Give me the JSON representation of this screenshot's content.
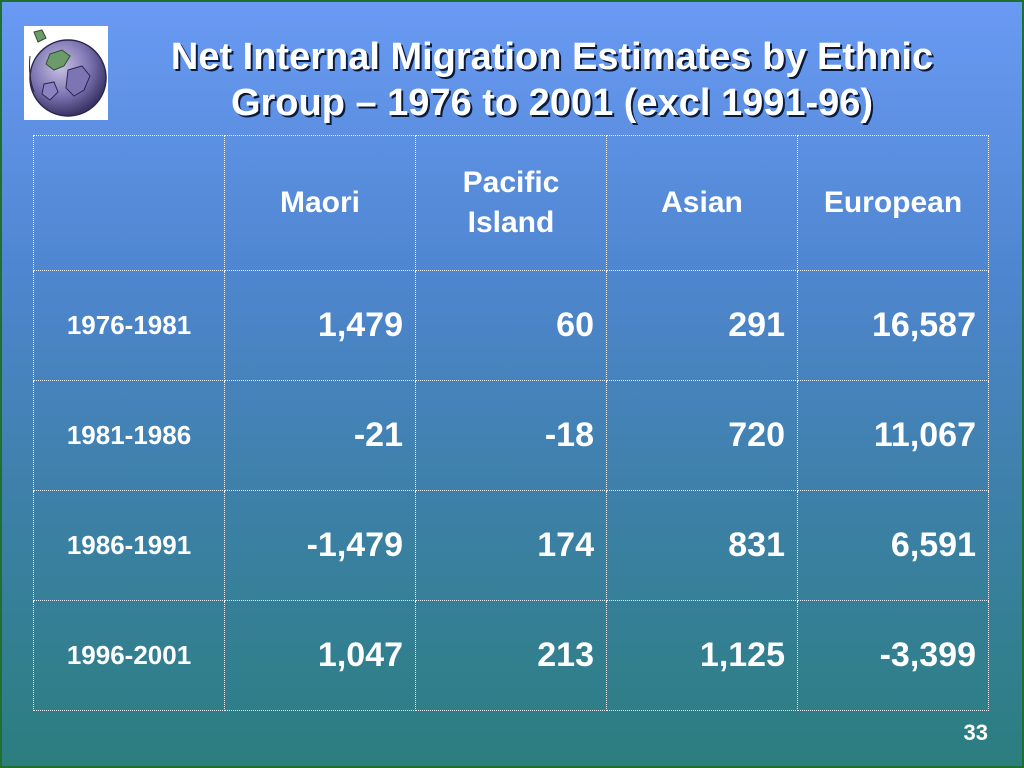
{
  "slide": {
    "title_line1": "Net Internal Migration Estimates by Ethnic",
    "title_line2": "Group – 1976 to 2001 (excl 1991-96)",
    "page_number": "33",
    "logo_icon": "globe-icon"
  },
  "table": {
    "corner": "",
    "columns": [
      {
        "line1": "Maori",
        "line2": ""
      },
      {
        "line1": "Pacific",
        "line2": "Island"
      },
      {
        "line1": "Asian",
        "line2": ""
      },
      {
        "line1": "European",
        "line2": ""
      }
    ],
    "rows": [
      {
        "period": "1976-1981",
        "values": [
          "1,479",
          "60",
          "291",
          "16,587"
        ]
      },
      {
        "period": "1981-1986",
        "values": [
          "-21",
          "-18",
          "720",
          "11,067"
        ]
      },
      {
        "period": "1986-1991",
        "values": [
          "-1,479",
          "174",
          "831",
          "6,591"
        ]
      },
      {
        "period": "1996-2001",
        "values": [
          "1,047",
          "213",
          "1,125",
          "-3,399"
        ]
      }
    ]
  },
  "colors": {
    "background_top": "#6a9af4",
    "background_bottom": "#2b7e7f",
    "text": "#ffffff",
    "border": "#1f6f2f"
  }
}
